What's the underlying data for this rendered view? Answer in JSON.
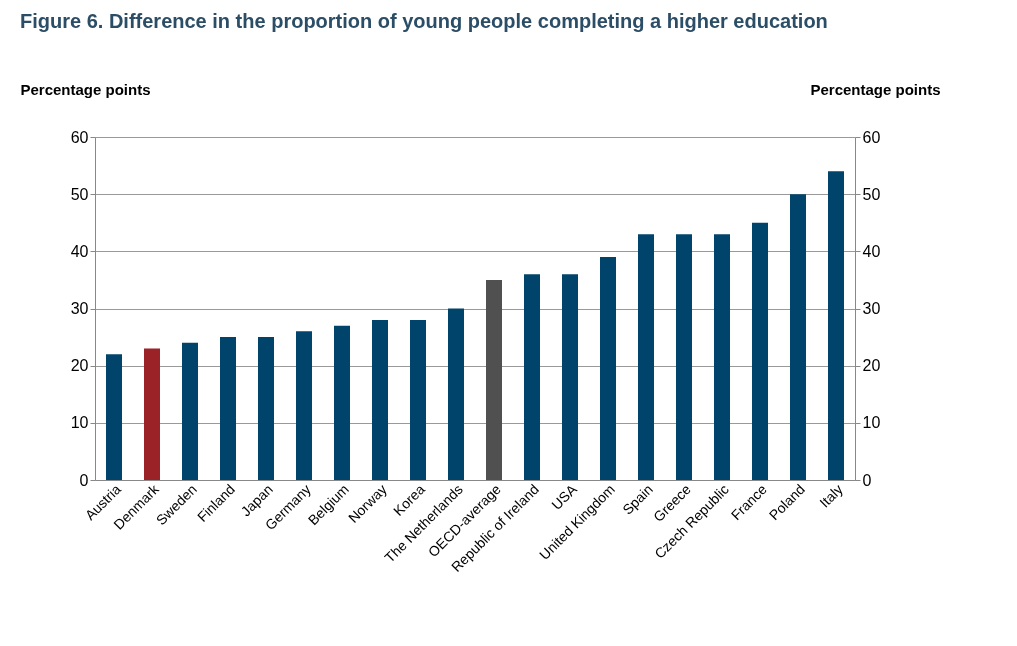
{
  "chart_data": {
    "type": "bar",
    "title": "Figure 6. Difference in the proportion of young people completing a higher education",
    "ylabel": "Percentage points",
    "y2label": "Percentage points",
    "categories": [
      "Austria",
      "Denmark",
      "Sweden",
      "Finland",
      "Japan",
      "Germany",
      "Belgium",
      "Norway",
      "Korea",
      "The Netherlands",
      "OECD-average",
      "Republic of Ireland",
      "USA",
      "United Kingdom",
      "Spain",
      "Greece",
      "Czech Republic",
      "France",
      "Poland",
      "Italy"
    ],
    "values": [
      22,
      23,
      24,
      25,
      25,
      26,
      27,
      28,
      28,
      30,
      35,
      36,
      36,
      39,
      43,
      43,
      43,
      45,
      50,
      54
    ],
    "colors": [
      "#00446b",
      "#9b2226",
      "#00446b",
      "#00446b",
      "#00446b",
      "#00446b",
      "#00446b",
      "#00446b",
      "#00446b",
      "#00446b",
      "#505050",
      "#00446b",
      "#00446b",
      "#00446b",
      "#00446b",
      "#00446b",
      "#00446b",
      "#00446b",
      "#00446b",
      "#00446b"
    ],
    "ylim": [
      0,
      60
    ],
    "yticks": [
      0,
      10,
      20,
      30,
      40,
      50,
      60
    ],
    "y2lim": [
      0,
      60
    ],
    "y2ticks": [
      0,
      10,
      20,
      30,
      40,
      50,
      60
    ],
    "grid": "y"
  }
}
